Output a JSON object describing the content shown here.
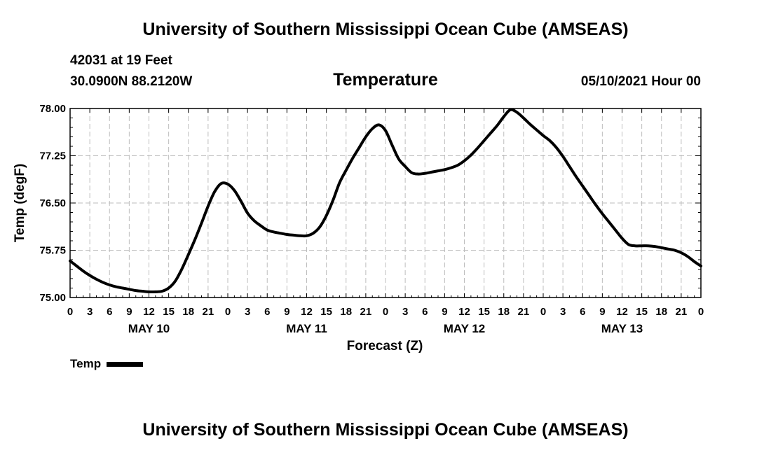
{
  "header": {
    "title": "University of Southern Mississippi Ocean Cube (AMSEAS)",
    "station": "42031 at 19 Feet",
    "coords": "30.0900N  88.2120W",
    "chart_title": "Temperature",
    "datetime": "05/10/2021 Hour 00"
  },
  "legend": {
    "label": "Temp"
  },
  "footer": {
    "title": "University of Southern Mississippi Ocean Cube (AMSEAS)"
  },
  "chart_data": {
    "type": "line",
    "title": "Temperature",
    "xlabel": "Forecast (Z)",
    "ylabel": "Temp (degF)",
    "xlim": [
      0,
      96
    ],
    "ylim": [
      75.0,
      78.0
    ],
    "y_ticks": [
      "75.00",
      "75.75",
      "76.50",
      "77.25",
      "78.00"
    ],
    "x_tick_labels": [
      "0",
      "3",
      "6",
      "9",
      "12",
      "15",
      "18",
      "21",
      "0",
      "3",
      "6",
      "9",
      "12",
      "15",
      "18",
      "21",
      "0",
      "3",
      "6",
      "9",
      "12",
      "15",
      "18",
      "21",
      "0",
      "3",
      "6",
      "9",
      "12",
      "15",
      "18",
      "21",
      "0"
    ],
    "day_labels": [
      {
        "hour": 12,
        "label": "MAY 10"
      },
      {
        "hour": 36,
        "label": "MAY 11"
      },
      {
        "hour": 60,
        "label": "MAY 12"
      },
      {
        "hour": 84,
        "label": "MAY 13"
      }
    ],
    "grid": true,
    "series": [
      {
        "name": "Temp",
        "color": "#000000",
        "x": [
          0,
          1,
          2,
          3,
          4,
          5,
          6,
          7,
          8,
          9,
          10,
          11,
          12,
          13,
          14,
          15,
          16,
          17,
          18,
          19,
          20,
          21,
          22,
          23,
          24,
          25,
          26,
          27,
          28,
          29,
          30,
          31,
          32,
          33,
          34,
          35,
          36,
          37,
          38,
          39,
          40,
          41,
          42,
          43,
          44,
          45,
          46,
          47,
          48,
          49,
          50,
          51,
          52,
          53,
          54,
          55,
          56,
          57,
          58,
          59,
          60,
          61,
          62,
          63,
          64,
          65,
          66,
          67,
          68,
          69,
          70,
          71,
          72,
          73,
          74,
          75,
          76,
          77,
          78,
          79,
          80,
          81,
          82,
          83,
          84,
          85,
          86,
          87,
          88,
          89,
          90,
          91,
          92,
          93,
          94,
          95,
          96
        ],
        "values": [
          75.58,
          75.5,
          75.42,
          75.35,
          75.29,
          75.24,
          75.2,
          75.17,
          75.15,
          75.13,
          75.11,
          75.1,
          75.09,
          75.09,
          75.1,
          75.15,
          75.26,
          75.45,
          75.68,
          75.92,
          76.18,
          76.45,
          76.68,
          76.81,
          76.8,
          76.7,
          76.53,
          76.34,
          76.22,
          76.14,
          76.07,
          76.04,
          76.02,
          76.0,
          75.99,
          75.98,
          75.98,
          76.02,
          76.12,
          76.3,
          76.54,
          76.82,
          77.02,
          77.21,
          77.38,
          77.55,
          77.68,
          77.74,
          77.65,
          77.42,
          77.2,
          77.08,
          76.98,
          76.96,
          76.97,
          76.99,
          77.01,
          77.03,
          77.06,
          77.1,
          77.17,
          77.26,
          77.37,
          77.49,
          77.61,
          77.73,
          77.87,
          77.98,
          77.94,
          77.85,
          77.75,
          77.66,
          77.57,
          77.49,
          77.38,
          77.24,
          77.08,
          76.92,
          76.77,
          76.62,
          76.47,
          76.33,
          76.2,
          76.07,
          75.94,
          75.84,
          75.82,
          75.82,
          75.82,
          75.81,
          75.79,
          75.77,
          75.75,
          75.71,
          75.65,
          75.57,
          75.5
        ]
      }
    ]
  }
}
